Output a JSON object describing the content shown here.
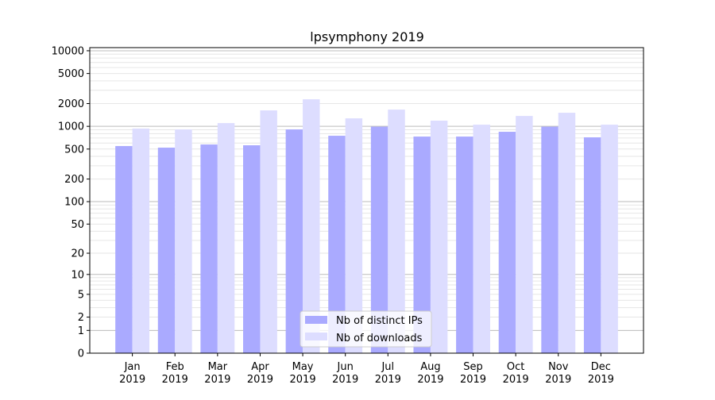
{
  "chart_data": {
    "type": "bar",
    "title": "lpsymphony 2019",
    "xlabel": "",
    "ylabel": "",
    "categories": [
      "Jan\n2019",
      "Feb\n2019",
      "Mar\n2019",
      "Apr\n2019",
      "May\n2019",
      "Jun\n2019",
      "Jul\n2019",
      "Aug\n2019",
      "Sep\n2019",
      "Oct\n2019",
      "Nov\n2019",
      "Dec\n2019"
    ],
    "series": [
      {
        "name": "Nb of distinct IPs",
        "color": "#aaaaff",
        "values": [
          548,
          522,
          575,
          561,
          910,
          750,
          990,
          732,
          732,
          847,
          990,
          715
        ]
      },
      {
        "name": "Nb of downloads",
        "color": "#ddddff",
        "values": [
          933,
          910,
          1104,
          1625,
          2280,
          1276,
          1665,
          1188,
          1052,
          1372,
          1511,
          1052
        ]
      }
    ],
    "y_scale": "log(1+y)",
    "ylim": [
      0,
      11000
    ],
    "yticks": [
      0,
      1,
      2,
      5,
      10,
      20,
      50,
      100,
      200,
      500,
      1000,
      2000,
      5000,
      10000
    ],
    "ytick_labels": [
      "0",
      "1",
      "2",
      "5",
      "10",
      "20",
      "50",
      "100",
      "200",
      "500",
      "1000",
      "2000",
      "5000",
      "10000"
    ],
    "grid": true,
    "legend_position": "lower center"
  }
}
